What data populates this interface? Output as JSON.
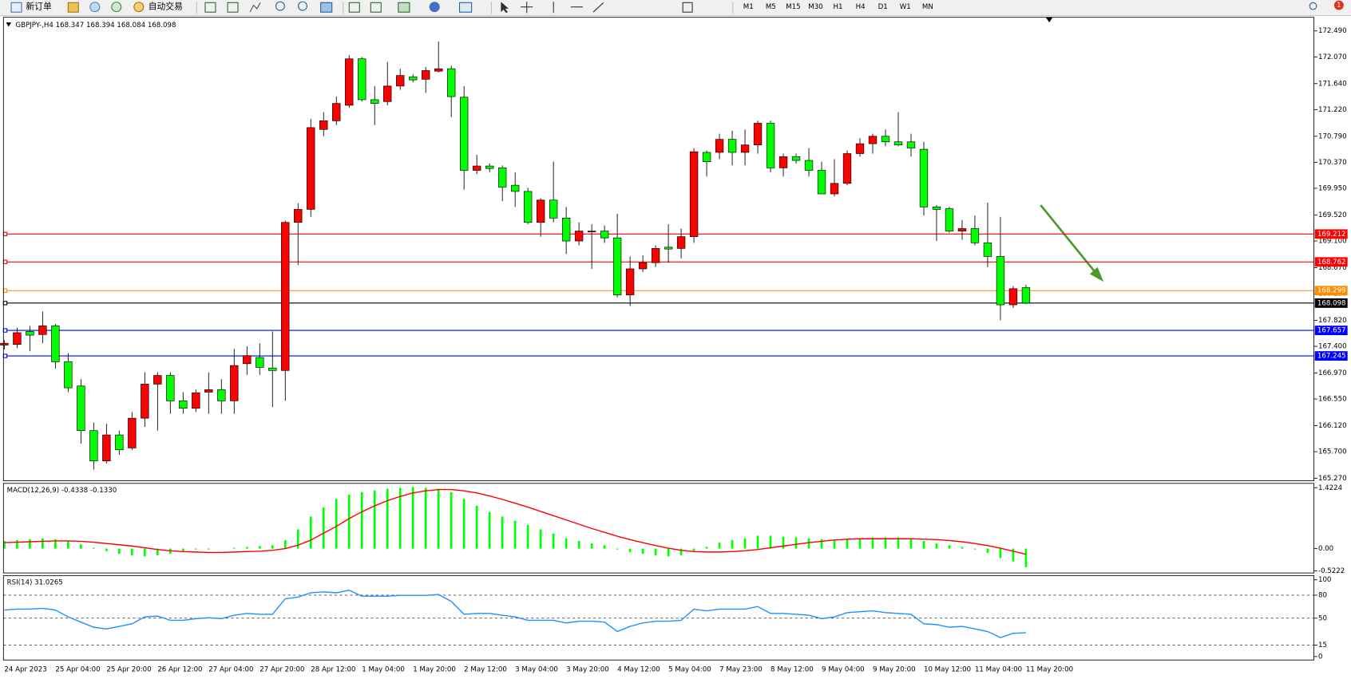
{
  "toolbar": {
    "new_order": "新订单",
    "auto_trading": "自动交易",
    "timeframes": [
      "M1",
      "M5",
      "M15",
      "M30",
      "H1",
      "H4",
      "D1",
      "W1",
      "MN"
    ],
    "badge": "1"
  },
  "chart_data": [
    {
      "type": "candlestick",
      "title": "GBPJPY-,H4  168.347 168.394 168.084 168.098",
      "up_color": "#ff0000",
      "down_color": "#00ff00",
      "categories": [
        "24 Apr 2023",
        null,
        null,
        null,
        "25 Apr 04:00",
        null,
        null,
        null,
        "25 Apr 20:00",
        null,
        null,
        null,
        "26 Apr 12:00",
        null,
        null,
        null,
        "27 Apr 04:00",
        null,
        null,
        null,
        "27 Apr 20:00",
        null,
        null,
        null,
        "28 Apr 12:00",
        null,
        null,
        null,
        "1 May 04:00",
        null,
        null,
        null,
        "1 May 20:00",
        null,
        null,
        null,
        "2 May 12:00",
        null,
        null,
        null,
        "3 May 04:00",
        null,
        null,
        null,
        "3 May 20:00",
        null,
        null,
        null,
        "4 May 12:00",
        null,
        null,
        null,
        "5 May 04:00",
        null,
        null,
        null,
        "7 May 23:00",
        null,
        null,
        null,
        "8 May 12:00",
        null,
        null,
        null,
        "9 May 04:00",
        null,
        null,
        null,
        "9 May 20:00",
        null,
        null,
        null,
        "10 May 12:00",
        null,
        null,
        null,
        "11 May 04:00",
        null,
        null,
        null,
        "11 May 20:00"
      ],
      "open": [
        167.42,
        167.43,
        167.64,
        167.59,
        167.73,
        167.15,
        166.76,
        166.04,
        165.55,
        165.97,
        165.76,
        166.24,
        166.79,
        166.93,
        166.52,
        166.4,
        166.66,
        166.7,
        166.52,
        167.12,
        167.22,
        167.05,
        167.01,
        169.4,
        169.61,
        170.9,
        171.04,
        171.29,
        172.04,
        171.38,
        171.35,
        171.6,
        171.75,
        171.71,
        171.84,
        171.88,
        171.42,
        170.24,
        170.31,
        170.28,
        170.0,
        169.9,
        169.4,
        169.76,
        169.47,
        169.1,
        169.25,
        169.26,
        169.15,
        168.23,
        168.65,
        168.75,
        169.0,
        168.98,
        169.17,
        170.53,
        170.53,
        170.74,
        170.53,
        170.65,
        171.0,
        170.28,
        170.46,
        170.4,
        170.24,
        169.86,
        170.03,
        170.51,
        170.67,
        170.79,
        170.7,
        170.7,
        170.58,
        169.65,
        169.62,
        169.26,
        169.3,
        169.07,
        168.85,
        168.07,
        168.347
      ],
      "high": [
        167.5,
        167.7,
        167.73,
        167.96,
        167.76,
        167.29,
        166.87,
        166.17,
        166.15,
        166.04,
        166.34,
        166.98,
        166.98,
        166.98,
        166.66,
        166.7,
        166.98,
        166.87,
        167.36,
        167.4,
        167.45,
        167.64,
        169.43,
        169.71,
        171.07,
        171.18,
        171.43,
        172.1,
        172.07,
        171.6,
        171.99,
        171.88,
        171.79,
        171.91,
        172.32,
        171.93,
        171.6,
        170.49,
        170.35,
        170.32,
        170.21,
        169.96,
        169.79,
        170.38,
        169.65,
        169.4,
        169.37,
        169.35,
        169.54,
        168.85,
        168.87,
        169.03,
        169.37,
        169.3,
        170.6,
        170.56,
        170.83,
        170.88,
        170.9,
        171.04,
        171.04,
        170.51,
        170.51,
        170.6,
        170.38,
        170.42,
        170.56,
        170.76,
        170.83,
        170.9,
        171.18,
        170.83,
        170.7,
        169.68,
        169.65,
        169.44,
        169.51,
        169.72,
        169.49,
        168.37,
        168.394
      ],
      "low": [
        167.35,
        167.37,
        167.32,
        167.45,
        167.04,
        166.66,
        165.83,
        165.41,
        165.51,
        165.65,
        165.73,
        166.1,
        166.04,
        166.31,
        166.31,
        166.34,
        166.31,
        166.31,
        166.31,
        166.94,
        166.94,
        166.42,
        166.52,
        168.71,
        169.49,
        170.79,
        170.97,
        171.25,
        171.35,
        170.97,
        171.29,
        171.54,
        171.66,
        171.49,
        171.82,
        171.1,
        169.93,
        170.18,
        170.21,
        169.74,
        169.65,
        169.37,
        169.17,
        169.4,
        168.89,
        169.03,
        168.65,
        169.07,
        168.19,
        168.05,
        168.6,
        168.68,
        168.75,
        168.82,
        169.07,
        170.14,
        170.42,
        170.32,
        170.32,
        170.51,
        170.21,
        170.14,
        170.35,
        170.14,
        169.86,
        169.82,
        170.0,
        170.46,
        170.51,
        170.63,
        170.63,
        170.46,
        169.51,
        169.1,
        169.23,
        169.12,
        169.03,
        168.68,
        167.82,
        168.02,
        168.084
      ],
      "close": [
        167.45,
        167.62,
        167.58,
        167.73,
        167.15,
        166.73,
        166.04,
        165.55,
        165.97,
        165.73,
        166.24,
        166.79,
        166.93,
        166.52,
        166.4,
        166.65,
        166.7,
        166.52,
        167.09,
        167.25,
        167.06,
        167.01,
        169.4,
        169.61,
        170.93,
        171.04,
        171.32,
        172.04,
        171.38,
        171.32,
        171.6,
        171.77,
        171.7,
        171.85,
        171.88,
        171.43,
        170.24,
        170.31,
        170.27,
        169.97,
        169.9,
        169.4,
        169.76,
        169.47,
        169.1,
        169.26,
        169.26,
        169.15,
        168.23,
        168.65,
        168.75,
        168.98,
        168.97,
        169.17,
        170.54,
        170.38,
        170.74,
        170.53,
        170.65,
        171.0,
        170.28,
        170.46,
        170.4,
        170.24,
        169.86,
        170.03,
        170.51,
        170.67,
        170.79,
        170.7,
        170.65,
        170.6,
        169.65,
        169.61,
        169.26,
        169.3,
        169.07,
        168.85,
        168.07,
        168.33,
        168.098
      ],
      "ylim": [
        165.23,
        172.71
      ],
      "yticks": [
        {
          "value": 172.49,
          "label": "172.490"
        },
        {
          "value": 172.07,
          "label": "172.070"
        },
        {
          "value": 171.64,
          "label": "171.640"
        },
        {
          "value": 171.22,
          "label": "171.220"
        },
        {
          "value": 170.79,
          "label": "170.790"
        },
        {
          "value": 170.37,
          "label": "170.370"
        },
        {
          "value": 169.95,
          "label": "169.950"
        },
        {
          "value": 169.52,
          "label": "169.520"
        },
        {
          "value": 169.1,
          "label": "169.100"
        },
        {
          "value": 168.67,
          "label": "168.670"
        },
        {
          "value": 168.25,
          "label": "168.250"
        },
        {
          "value": 167.82,
          "label": "167.820"
        },
        {
          "value": 167.4,
          "label": "167.400"
        },
        {
          "value": 166.97,
          "label": "166.970"
        },
        {
          "value": 166.55,
          "label": "166.550"
        },
        {
          "value": 166.12,
          "label": "166.120"
        },
        {
          "value": 165.7,
          "label": "165.700"
        },
        {
          "value": 165.27,
          "label": "165.270"
        }
      ],
      "lines": [
        {
          "value": 169.212,
          "color": "#ff0000"
        },
        {
          "value": 168.762,
          "color": "#ff0000"
        },
        {
          "value": 168.299,
          "color": "#ff8c00"
        },
        {
          "value": 168.098,
          "color": "#000000"
        },
        {
          "value": 167.657,
          "color": "#0000ff"
        },
        {
          "value": 167.245,
          "color": "#0000ff"
        }
      ]
    },
    {
      "type": "macd",
      "title": "MACD(12,26,9) -0.4338 -0.1330",
      "histogram_color": "#00ff00",
      "signal_color": "#ff0000",
      "histogram": [
        0.18,
        0.2,
        0.22,
        0.24,
        0.22,
        0.18,
        0.1,
        0.02,
        -0.06,
        -0.12,
        -0.16,
        -0.18,
        -0.16,
        -0.12,
        -0.06,
        -0.02,
        -0.02,
        0,
        0.02,
        0.04,
        0.06,
        0.08,
        0.2,
        0.45,
        0.75,
        0.96,
        1.16,
        1.26,
        1.32,
        1.36,
        1.4,
        1.42,
        1.44,
        1.42,
        1.4,
        1.32,
        1.16,
        1.0,
        0.85,
        0.75,
        0.65,
        0.55,
        0.45,
        0.35,
        0.24,
        0.18,
        0.12,
        0.08,
        -0.02,
        -0.08,
        -0.12,
        -0.16,
        -0.18,
        -0.16,
        -0.06,
        0.04,
        0.14,
        0.2,
        0.24,
        0.3,
        0.3,
        0.28,
        0.26,
        0.24,
        0.22,
        0.2,
        0.22,
        0.24,
        0.26,
        0.26,
        0.26,
        0.24,
        0.18,
        0.12,
        0.08,
        0.04,
        -0.02,
        -0.1,
        -0.22,
        -0.3,
        -0.4338
      ],
      "signal": [
        0.14,
        0.15,
        0.16,
        0.17,
        0.18,
        0.18,
        0.17,
        0.15,
        0.12,
        0.09,
        0.06,
        0.02,
        -0.02,
        -0.05,
        -0.07,
        -0.08,
        -0.09,
        -0.09,
        -0.08,
        -0.07,
        -0.06,
        -0.04,
        0.0,
        0.08,
        0.2,
        0.36,
        0.52,
        0.7,
        0.86,
        1.0,
        1.12,
        1.22,
        1.3,
        1.35,
        1.38,
        1.38,
        1.35,
        1.3,
        1.23,
        1.15,
        1.06,
        0.97,
        0.87,
        0.77,
        0.67,
        0.57,
        0.47,
        0.38,
        0.29,
        0.21,
        0.14,
        0.07,
        0.01,
        -0.04,
        -0.07,
        -0.08,
        -0.08,
        -0.07,
        -0.05,
        -0.02,
        0.02,
        0.06,
        0.1,
        0.14,
        0.17,
        0.2,
        0.22,
        0.23,
        0.23,
        0.23,
        0.23,
        0.23,
        0.22,
        0.21,
        0.19,
        0.16,
        0.12,
        0.07,
        0.01,
        -0.06,
        -0.133
      ],
      "ylim": [
        -0.569,
        1.524
      ],
      "yticks": [
        1.4224,
        {
          "value": 0,
          "label": "0.00"
        },
        -0.5222
      ]
    },
    {
      "type": "line",
      "title": "RSI(14) 31.0265",
      "color": "#1e90ff",
      "values": [
        60.7,
        61.8,
        61.8,
        62.9,
        60.7,
        51.7,
        44.9,
        38.2,
        36.0,
        39.3,
        42.7,
        51.7,
        52.8,
        47.2,
        47.2,
        49.4,
        50.6,
        49.4,
        53.9,
        56.2,
        55.1,
        55.1,
        75.3,
        77.5,
        83.1,
        84.3,
        83.1,
        86.5,
        78.7,
        78.7,
        78.7,
        79.8,
        79.8,
        79.8,
        80.9,
        71.9,
        55.1,
        56.2,
        56.2,
        53.9,
        51.7,
        47.2,
        47.2,
        47.2,
        43.8,
        46.1,
        46.1,
        44.9,
        32.6,
        39.3,
        43.8,
        46.1,
        46.1,
        47.2,
        61.8,
        59.6,
        61.8,
        61.8,
        61.8,
        65.2,
        56.2,
        56.2,
        55.1,
        53.9,
        49.4,
        51.7,
        57.3,
        58.4,
        59.6,
        57.3,
        56.2,
        55.1,
        42.7,
        41.6,
        38.2,
        39.3,
        36.0,
        32.6,
        24.7,
        30.3,
        31.0265
      ],
      "ylim": [
        -4.5,
        105.6
      ],
      "yticks": [
        100,
        80,
        50,
        15,
        0
      ],
      "levels": [
        80,
        50,
        15
      ]
    }
  ]
}
